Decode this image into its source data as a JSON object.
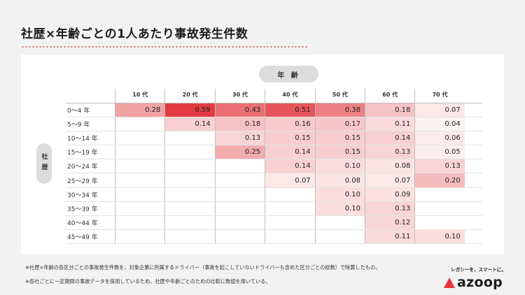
{
  "title": "社歴×年齢ごとの1人あたり事故発生件数",
  "x_axis_title": "年 齢",
  "y_axis_title": "社歴",
  "columns": [
    "10 代",
    "20 代",
    "30 代",
    "40 代",
    "50 代",
    "60 代",
    "70 代"
  ],
  "rows": [
    "0〜4 年",
    "5〜9 年",
    "10〜14 年",
    "15〜19 年",
    "20〜24 年",
    "25〜29 年",
    "30〜34 年",
    "35〜39 年",
    "40〜44 年",
    "45〜49 年"
  ],
  "chart_data": {
    "type": "heatmap",
    "title": "社歴×年齢ごとの1人あたり事故発生件数",
    "xlabel": "年 齢",
    "ylabel": "社歴",
    "x": [
      "10 代",
      "20 代",
      "30 代",
      "40 代",
      "50 代",
      "60 代",
      "70 代"
    ],
    "y": [
      "0〜4 年",
      "5〜9 年",
      "10〜14 年",
      "15〜19 年",
      "20〜24 年",
      "25〜29 年",
      "30〜34 年",
      "35〜39 年",
      "40〜44 年",
      "45〜49 年"
    ],
    "values": [
      [
        "0.28",
        "0.59",
        "0.43",
        "0.51",
        "0.38",
        "0.18",
        "0.07"
      ],
      [
        null,
        "0.14",
        "0.18",
        "0.16",
        "0.17",
        "0.11",
        "0.04"
      ],
      [
        null,
        null,
        "0.13",
        "0.15",
        "0.15",
        "0.14",
        "0.06"
      ],
      [
        null,
        null,
        "0.25",
        "0.14",
        "0.15",
        "0.13",
        "0.05"
      ],
      [
        null,
        null,
        null,
        "0.14",
        "0.10",
        "0.08",
        "0.13"
      ],
      [
        null,
        null,
        null,
        "0.07",
        "0.08",
        "0.07",
        "0.20"
      ],
      [
        null,
        null,
        null,
        null,
        "0.10",
        "0.09",
        null
      ],
      [
        null,
        null,
        null,
        null,
        "0.10",
        "0.13",
        null
      ],
      [
        null,
        null,
        null,
        null,
        null,
        "0.12",
        null
      ],
      [
        null,
        null,
        null,
        null,
        null,
        "0.11",
        "0.10"
      ]
    ],
    "color_scale": [
      "#ffffff",
      "#e23a40"
    ]
  },
  "notes": [
    "※社歴×年齢の各区分ごとの事故発生件数を、対象企業に所属するドライバー（事故を起こしていないドライバーも含めた区分ごとの総数）で除算したもの。",
    "※各社ごとに一定期間の事故データを採用しているため、社歴や年齢ごとのための比較に数値を用いている。"
  ],
  "brand": {
    "tagline": "レガシーを、スマートに。",
    "name": "azoop"
  }
}
